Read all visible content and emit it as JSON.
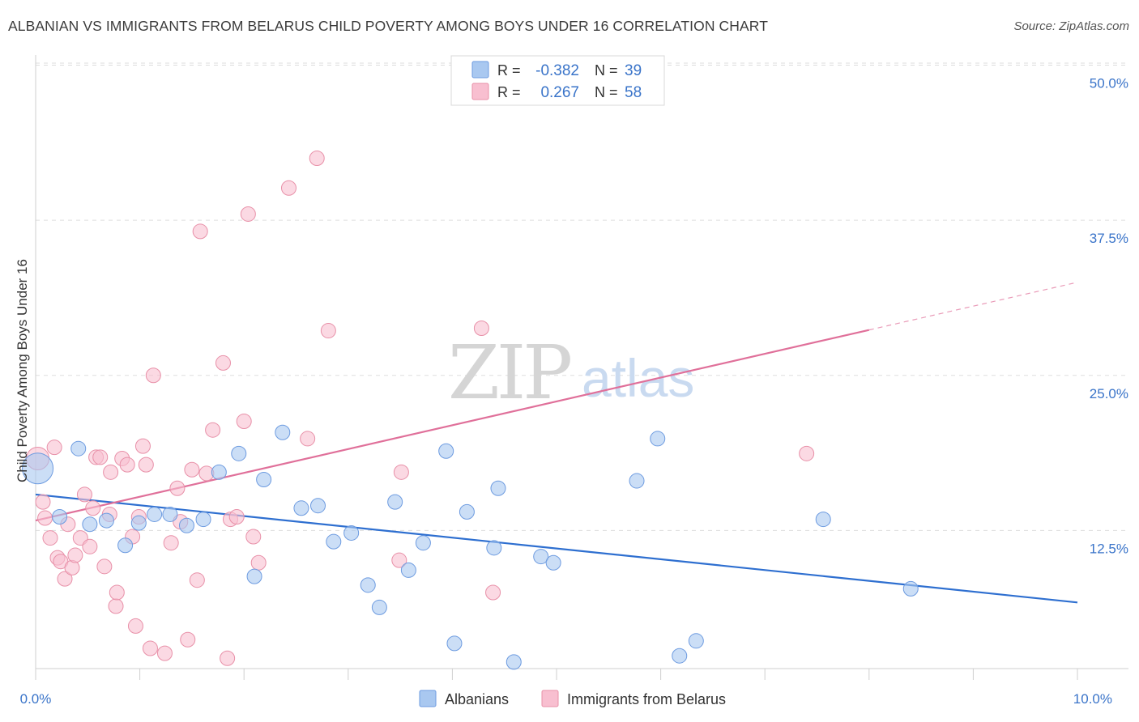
{
  "title": "ALBANIAN VS IMMIGRANTS FROM BELARUS CHILD POVERTY AMONG BOYS UNDER 16 CORRELATION CHART",
  "source": "Source: ZipAtlas.com",
  "watermark": {
    "zip": "ZIP",
    "atlas": "atlas"
  },
  "legend_top": [
    {
      "r_label": "R =",
      "r_value": "-0.382",
      "n_label": "N =",
      "n_value": "39",
      "color": "#a9c8f0",
      "stroke": "#6d9be0"
    },
    {
      "r_label": "R =",
      "r_value": "0.267",
      "n_label": "N =",
      "n_value": "58",
      "color": "#f8bfd0",
      "stroke": "#e890a8"
    }
  ],
  "legend_bottom": [
    {
      "label": "Albanians",
      "color": "#a9c8f0",
      "stroke": "#6d9be0"
    },
    {
      "label": "Immigrants from Belarus",
      "color": "#f8bfd0",
      "stroke": "#e890a8"
    }
  ],
  "colors": {
    "blue_line": "#2e6fd0",
    "pink_line": "#e0709a",
    "tick_text": "#3a74c9",
    "grid": "#dddddd"
  },
  "chart_data": {
    "type": "scatter",
    "title": "ALBANIAN VS IMMIGRANTS FROM BELARUS CHILD POVERTY AMONG BOYS UNDER 16 CORRELATION CHART",
    "xlabel": "",
    "ylabel": "Child Poverty Among Boys Under 16",
    "xlim": [
      0,
      10
    ],
    "ylim": [
      0,
      52
    ],
    "x_tick_labels": [
      "0.0%",
      "10.0%"
    ],
    "y_ticks": [
      12.5,
      25.0,
      37.5,
      50.0
    ],
    "y_tick_labels": [
      "12.5%",
      "25.0%",
      "37.5%",
      "50.0%"
    ],
    "grid": true,
    "legend_position": "bottom-center",
    "series": [
      {
        "name": "Albanians",
        "color": "#a9c8f0",
        "points": [
          [
            0.02,
            17.5
          ],
          [
            0.23,
            13.6
          ],
          [
            0.41,
            19.1
          ],
          [
            0.52,
            13.0
          ],
          [
            0.68,
            13.3
          ],
          [
            0.86,
            11.3
          ],
          [
            0.99,
            13.1
          ],
          [
            1.14,
            13.8
          ],
          [
            1.29,
            13.8
          ],
          [
            1.45,
            12.9
          ],
          [
            1.61,
            13.4
          ],
          [
            1.76,
            17.2
          ],
          [
            1.95,
            18.7
          ],
          [
            2.1,
            8.8
          ],
          [
            2.19,
            16.6
          ],
          [
            2.37,
            20.4
          ],
          [
            2.55,
            14.3
          ],
          [
            2.71,
            14.5
          ],
          [
            2.86,
            11.6
          ],
          [
            3.03,
            12.3
          ],
          [
            3.19,
            8.1
          ],
          [
            3.3,
            6.3
          ],
          [
            3.45,
            14.8
          ],
          [
            3.58,
            9.3
          ],
          [
            3.72,
            11.5
          ],
          [
            3.94,
            18.9
          ],
          [
            4.02,
            3.4
          ],
          [
            4.14,
            14.0
          ],
          [
            4.4,
            11.1
          ],
          [
            4.44,
            15.9
          ],
          [
            4.59,
            1.9
          ],
          [
            4.85,
            10.4
          ],
          [
            4.97,
            9.9
          ],
          [
            5.77,
            16.5
          ],
          [
            5.97,
            19.9
          ],
          [
            6.18,
            2.4
          ],
          [
            6.34,
            3.6
          ],
          [
            7.56,
            13.4
          ],
          [
            8.4,
            7.8
          ]
        ]
      },
      {
        "name": "Immigrants from Belarus",
        "color": "#f8bfd0",
        "points": [
          [
            0.02,
            18.3
          ],
          [
            0.07,
            14.8
          ],
          [
            0.09,
            13.5
          ],
          [
            0.14,
            11.9
          ],
          [
            0.18,
            19.2
          ],
          [
            0.21,
            10.3
          ],
          [
            0.24,
            10.0
          ],
          [
            0.28,
            8.6
          ],
          [
            0.31,
            13.0
          ],
          [
            0.35,
            9.5
          ],
          [
            0.38,
            10.5
          ],
          [
            0.43,
            11.9
          ],
          [
            0.47,
            15.4
          ],
          [
            0.52,
            11.2
          ],
          [
            0.55,
            14.3
          ],
          [
            0.58,
            18.4
          ],
          [
            0.62,
            18.4
          ],
          [
            0.66,
            9.6
          ],
          [
            0.71,
            13.8
          ],
          [
            0.72,
            17.2
          ],
          [
            0.77,
            6.4
          ],
          [
            0.78,
            7.5
          ],
          [
            0.83,
            18.3
          ],
          [
            0.88,
            17.8
          ],
          [
            0.93,
            12.0
          ],
          [
            0.96,
            4.8
          ],
          [
            0.99,
            13.6
          ],
          [
            1.03,
            19.3
          ],
          [
            1.06,
            17.8
          ],
          [
            1.1,
            3.0
          ],
          [
            1.13,
            25.0
          ],
          [
            1.24,
            2.6
          ],
          [
            1.3,
            11.5
          ],
          [
            1.36,
            15.9
          ],
          [
            1.39,
            13.2
          ],
          [
            1.46,
            3.7
          ],
          [
            1.5,
            17.4
          ],
          [
            1.55,
            8.5
          ],
          [
            1.58,
            36.6
          ],
          [
            1.64,
            17.1
          ],
          [
            1.7,
            20.6
          ],
          [
            1.8,
            26.0
          ],
          [
            1.84,
            2.2
          ],
          [
            1.87,
            13.4
          ],
          [
            1.93,
            13.6
          ],
          [
            2.0,
            21.3
          ],
          [
            2.04,
            38.0
          ],
          [
            2.09,
            12.0
          ],
          [
            2.14,
            9.9
          ],
          [
            2.43,
            40.1
          ],
          [
            2.61,
            19.9
          ],
          [
            2.7,
            42.5
          ],
          [
            2.81,
            28.6
          ],
          [
            3.49,
            10.1
          ],
          [
            3.51,
            17.2
          ],
          [
            4.28,
            28.8
          ],
          [
            4.39,
            7.5
          ],
          [
            7.4,
            18.7
          ]
        ]
      }
    ],
    "trend_lines": [
      {
        "series": "Albanians",
        "x": [
          0.0,
          10.0
        ],
        "y": [
          15.4,
          6.7
        ],
        "dashed_from": null
      },
      {
        "series": "Immigrants from Belarus",
        "x": [
          0.0,
          10.0
        ],
        "y": [
          13.3,
          32.5
        ],
        "dashed_from": 8.0
      }
    ]
  }
}
